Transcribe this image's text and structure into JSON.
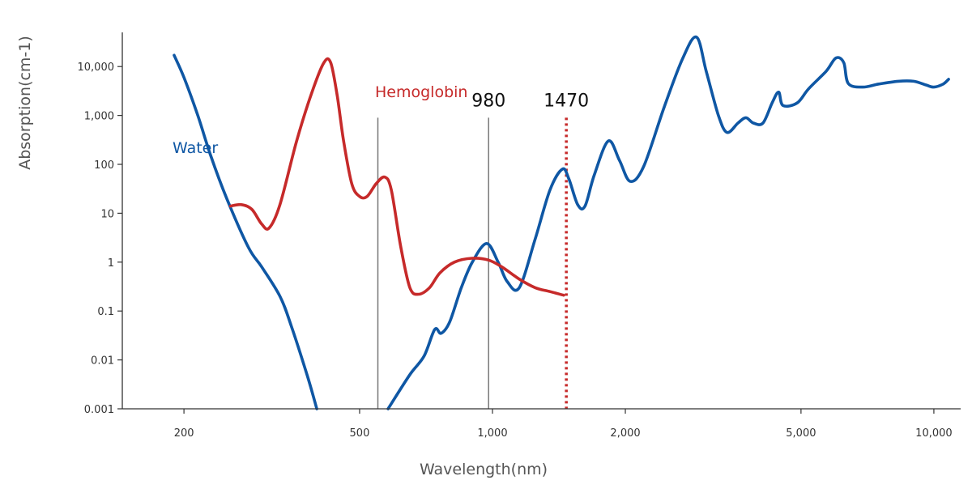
{
  "chart_data": {
    "type": "line",
    "title": "",
    "xlabel": "Wavelength(nm)",
    "ylabel": "Absorption(cm-1)",
    "x_scale": "log",
    "y_scale": "log",
    "xlim": [
      145,
      11500
    ],
    "ylim": [
      0.001,
      50000
    ],
    "x_ticks": [
      {
        "value": 200,
        "label": "200"
      },
      {
        "value": 500,
        "label": "500"
      },
      {
        "value": 1000,
        "label": "1,000"
      },
      {
        "value": 2000,
        "label": "2,000"
      },
      {
        "value": 5000,
        "label": "5,000"
      },
      {
        "value": 10000,
        "label": "10,000"
      }
    ],
    "y_ticks": [
      {
        "value": 0.001,
        "label": "0.001"
      },
      {
        "value": 0.01,
        "label": "0.01"
      },
      {
        "value": 0.1,
        "label": "0.1"
      },
      {
        "value": 1,
        "label": "1"
      },
      {
        "value": 10,
        "label": "10"
      },
      {
        "value": 100,
        "label": "100"
      },
      {
        "value": 1000,
        "label": "1,000"
      },
      {
        "value": 10000,
        "label": "10,000"
      }
    ],
    "grid": false,
    "legend": "none",
    "series": [
      {
        "name": "Water",
        "color": "#0f57a4",
        "points": [
          [
            190,
            17000
          ],
          [
            200,
            6000
          ],
          [
            215,
            1000
          ],
          [
            230,
            150
          ],
          [
            250,
            20
          ],
          [
            280,
            2
          ],
          [
            300,
            0.8
          ],
          [
            330,
            0.2
          ],
          [
            350,
            0.05
          ],
          [
            380,
            0.005
          ],
          [
            400,
            0.001
          ]
        ]
      },
      {
        "name": "",
        "color": "#0f57a4",
        "points": [
          [
            580,
            0.001
          ],
          [
            650,
            0.005
          ],
          [
            700,
            0.012
          ],
          [
            740,
            0.042
          ],
          [
            765,
            0.035
          ],
          [
            800,
            0.06
          ],
          [
            850,
            0.3
          ],
          [
            900,
            1
          ],
          [
            970,
            2.4
          ],
          [
            1030,
            1
          ],
          [
            1080,
            0.4
          ],
          [
            1150,
            0.3
          ],
          [
            1250,
            3
          ],
          [
            1350,
            30
          ],
          [
            1440,
            80
          ],
          [
            1490,
            50
          ],
          [
            1560,
            15
          ],
          [
            1620,
            14
          ],
          [
            1700,
            60
          ],
          [
            1830,
            300
          ],
          [
            1940,
            120
          ],
          [
            2050,
            45
          ],
          [
            2200,
            90
          ],
          [
            2450,
            1500
          ],
          [
            2700,
            15000
          ],
          [
            2900,
            40000
          ],
          [
            3050,
            8000
          ],
          [
            3250,
            1000
          ],
          [
            3400,
            450
          ],
          [
            3600,
            700
          ],
          [
            3750,
            900
          ],
          [
            3900,
            700
          ],
          [
            4100,
            700
          ],
          [
            4300,
            1800
          ],
          [
            4450,
            3000
          ],
          [
            4550,
            1600
          ],
          [
            4900,
            1800
          ],
          [
            5200,
            3500
          ],
          [
            5700,
            8000
          ],
          [
            6000,
            15000
          ],
          [
            6250,
            12000
          ],
          [
            6400,
            4500
          ],
          [
            6900,
            3800
          ],
          [
            7500,
            4400
          ],
          [
            8300,
            5000
          ],
          [
            9000,
            5000
          ],
          [
            9600,
            4200
          ],
          [
            10000,
            3800
          ],
          [
            10500,
            4400
          ],
          [
            10800,
            5500
          ]
        ]
      },
      {
        "name": "Hemoglobin",
        "color": "#c62a2a",
        "points": [
          [
            255,
            14
          ],
          [
            270,
            15
          ],
          [
            285,
            12
          ],
          [
            300,
            6
          ],
          [
            312,
            5
          ],
          [
            330,
            15
          ],
          [
            360,
            300
          ],
          [
            390,
            3000
          ],
          [
            415,
            12000
          ],
          [
            430,
            12000
          ],
          [
            445,
            2500
          ],
          [
            460,
            300
          ],
          [
            480,
            40
          ],
          [
            500,
            22
          ],
          [
            520,
            22
          ],
          [
            545,
            40
          ],
          [
            570,
            55
          ],
          [
            590,
            30
          ],
          [
            620,
            2
          ],
          [
            650,
            0.3
          ],
          [
            680,
            0.22
          ],
          [
            720,
            0.3
          ],
          [
            760,
            0.6
          ],
          [
            820,
            1
          ],
          [
            900,
            1.2
          ],
          [
            980,
            1.1
          ],
          [
            1050,
            0.8
          ],
          [
            1150,
            0.45
          ],
          [
            1250,
            0.3
          ],
          [
            1350,
            0.25
          ],
          [
            1450,
            0.21
          ]
        ]
      }
    ],
    "markers": [
      {
        "x": 550,
        "label": "",
        "style": "solid",
        "color": "#777777",
        "from": 0.001,
        "to": 900
      },
      {
        "x": 980,
        "label": "980",
        "style": "solid",
        "color": "#777777",
        "from": 0.001,
        "to": 900
      },
      {
        "x": 1470,
        "label": "1470",
        "style": "dotted",
        "color": "#c62a2a",
        "from": 0.001,
        "to": 900
      }
    ]
  }
}
